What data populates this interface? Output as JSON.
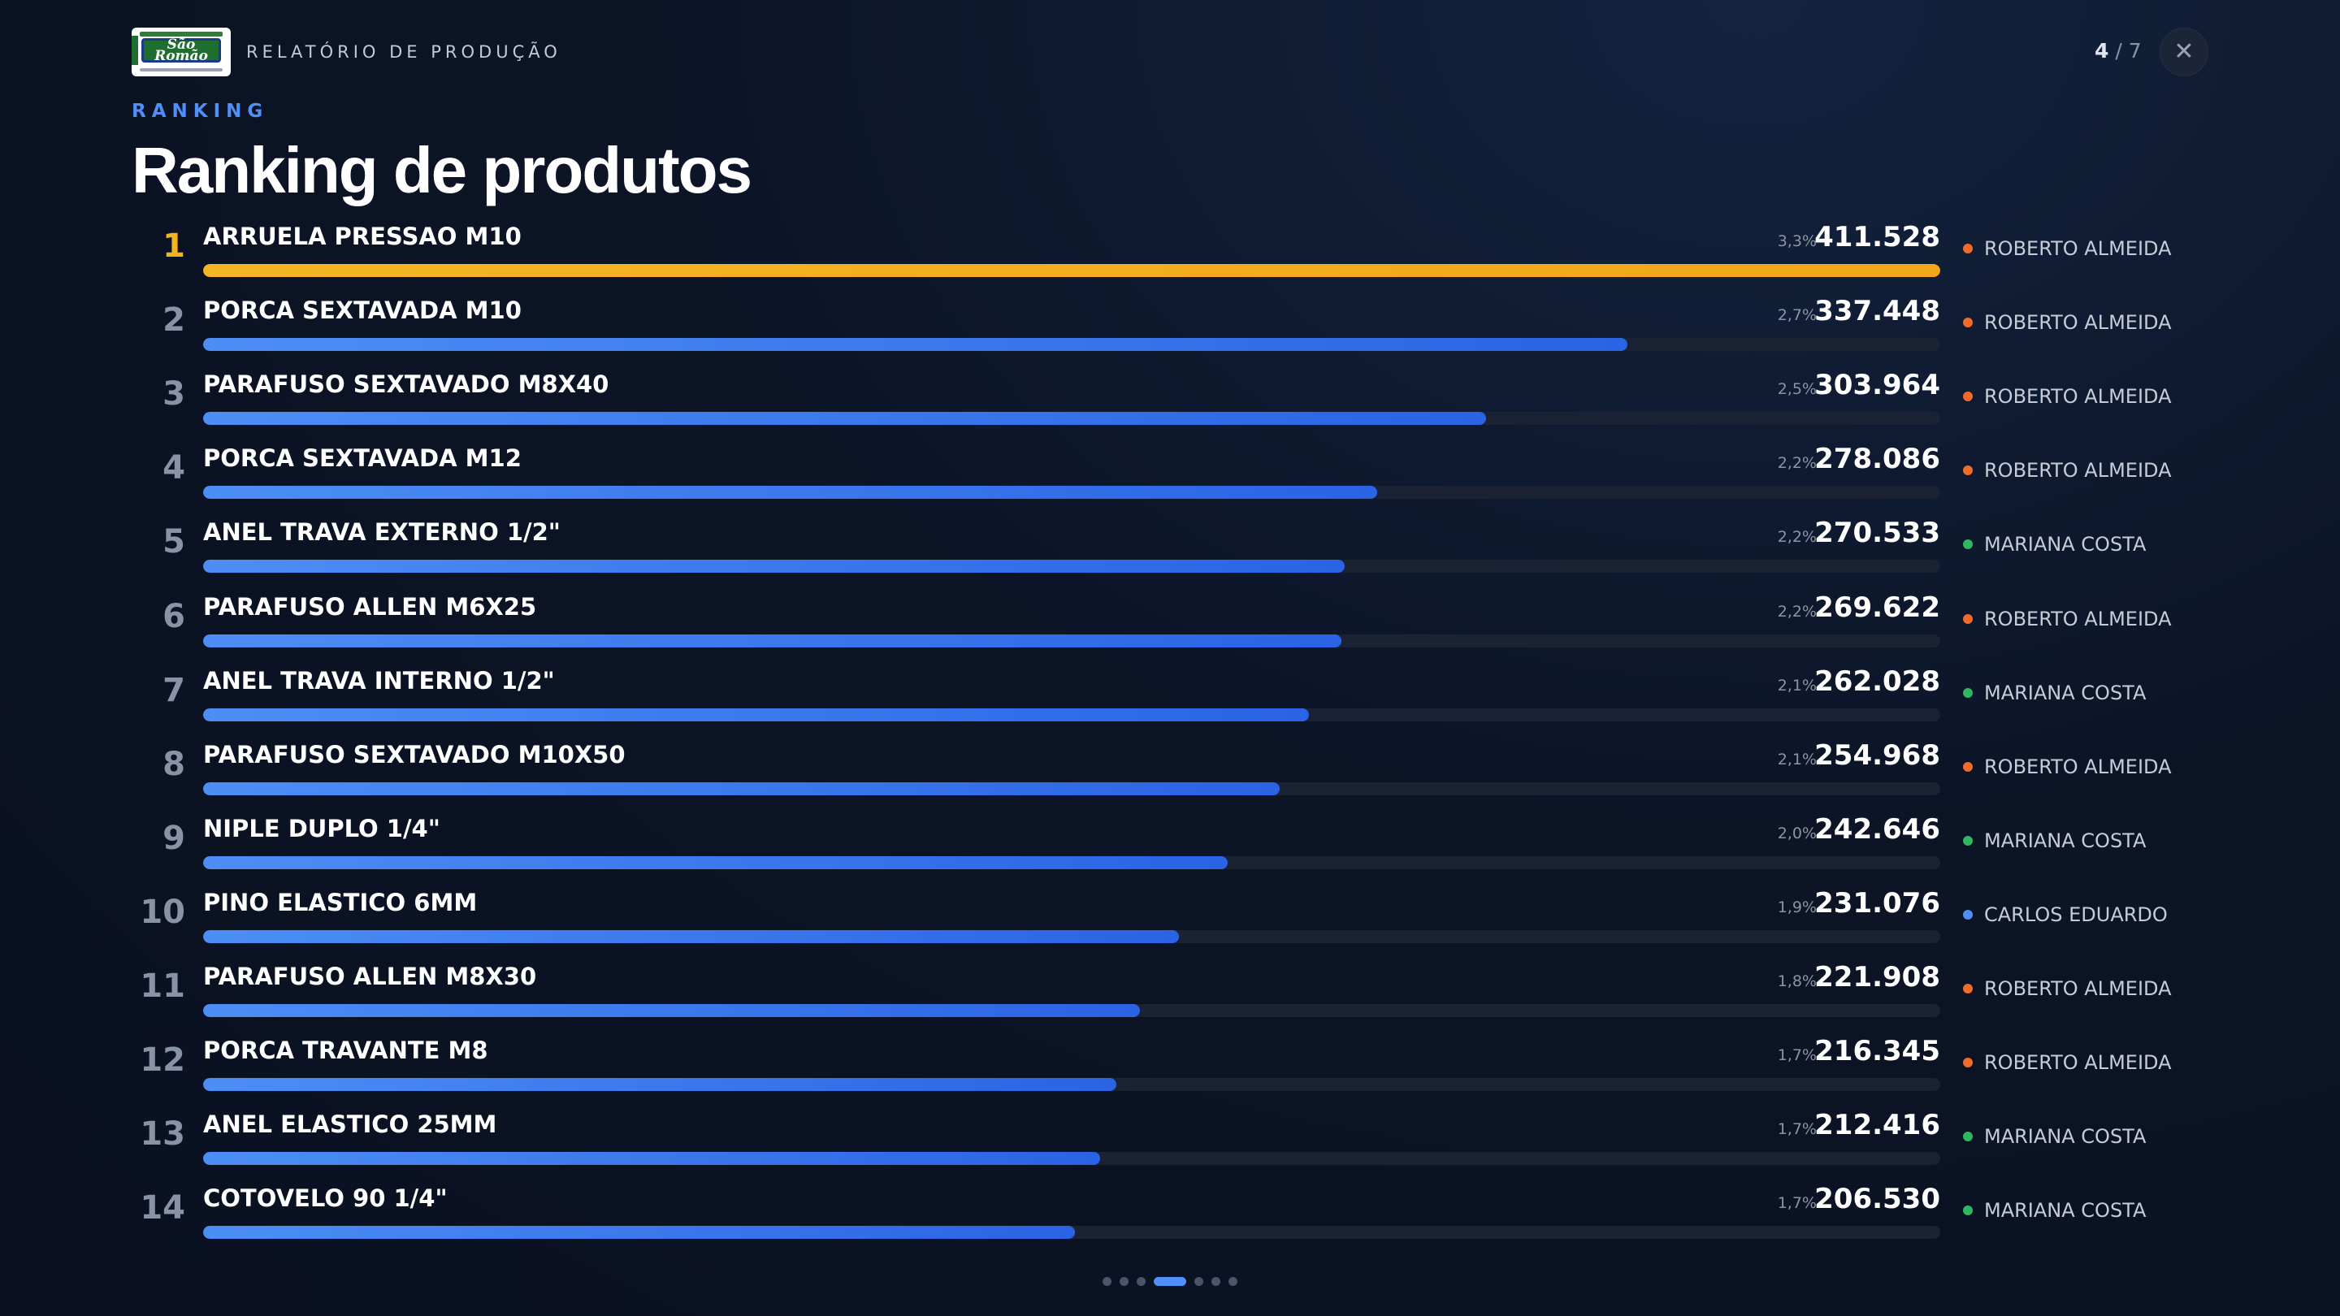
{
  "header": {
    "logo_text": "São Romão",
    "report_label": "RELATÓRIO DE PRODUÇÃO",
    "page_current": "4",
    "page_separator": " / ",
    "page_total": "7",
    "close_icon": "close-icon"
  },
  "section_label": "RANKING",
  "title": "Ranking de produtos",
  "colors": {
    "accent_blue": "#4f8ff7",
    "gold": "#f5b41c",
    "operator_orange": "#f26b2a",
    "operator_green": "#2fb860",
    "operator_blue": "#4f8ff7"
  },
  "rows": [
    {
      "rank": "1",
      "name": "ARRUELA PRESSAO M10",
      "pct": "3,3%",
      "value": "411.528",
      "amount": 411528,
      "operator": "ROBERTO ALMEIDA",
      "op_color": "#f26b2a"
    },
    {
      "rank": "2",
      "name": "PORCA SEXTAVADA M10",
      "pct": "2,7%",
      "value": "337.448",
      "amount": 337448,
      "operator": "ROBERTO ALMEIDA",
      "op_color": "#f26b2a"
    },
    {
      "rank": "3",
      "name": "PARAFUSO SEXTAVADO M8X40",
      "pct": "2,5%",
      "value": "303.964",
      "amount": 303964,
      "operator": "ROBERTO ALMEIDA",
      "op_color": "#f26b2a"
    },
    {
      "rank": "4",
      "name": "PORCA SEXTAVADA M12",
      "pct": "2,2%",
      "value": "278.086",
      "amount": 278086,
      "operator": "ROBERTO ALMEIDA",
      "op_color": "#f26b2a"
    },
    {
      "rank": "5",
      "name": "ANEL TRAVA EXTERNO 1/2\"",
      "pct": "2,2%",
      "value": "270.533",
      "amount": 270533,
      "operator": "MARIANA COSTA",
      "op_color": "#2fb860"
    },
    {
      "rank": "6",
      "name": "PARAFUSO ALLEN M6X25",
      "pct": "2,2%",
      "value": "269.622",
      "amount": 269622,
      "operator": "ROBERTO ALMEIDA",
      "op_color": "#f26b2a"
    },
    {
      "rank": "7",
      "name": "ANEL TRAVA INTERNO 1/2\"",
      "pct": "2,1%",
      "value": "262.028",
      "amount": 262028,
      "operator": "MARIANA COSTA",
      "op_color": "#2fb860"
    },
    {
      "rank": "8",
      "name": "PARAFUSO SEXTAVADO M10X50",
      "pct": "2,1%",
      "value": "254.968",
      "amount": 254968,
      "operator": "ROBERTO ALMEIDA",
      "op_color": "#f26b2a"
    },
    {
      "rank": "9",
      "name": "NIPLE DUPLO 1/4\"",
      "pct": "2,0%",
      "value": "242.646",
      "amount": 242646,
      "operator": "MARIANA COSTA",
      "op_color": "#2fb860"
    },
    {
      "rank": "10",
      "name": "PINO ELASTICO 6MM",
      "pct": "1,9%",
      "value": "231.076",
      "amount": 231076,
      "operator": "CARLOS EDUARDO",
      "op_color": "#4f8ff7"
    },
    {
      "rank": "11",
      "name": "PARAFUSO ALLEN M8X30",
      "pct": "1,8%",
      "value": "221.908",
      "amount": 221908,
      "operator": "ROBERTO ALMEIDA",
      "op_color": "#f26b2a"
    },
    {
      "rank": "12",
      "name": "PORCA TRAVANTE M8",
      "pct": "1,7%",
      "value": "216.345",
      "amount": 216345,
      "operator": "ROBERTO ALMEIDA",
      "op_color": "#f26b2a"
    },
    {
      "rank": "13",
      "name": "ANEL ELASTICO 25MM",
      "pct": "1,7%",
      "value": "212.416",
      "amount": 212416,
      "operator": "MARIANA COSTA",
      "op_color": "#2fb860"
    },
    {
      "rank": "14",
      "name": "COTOVELO 90 1/4\"",
      "pct": "1,7%",
      "value": "206.530",
      "amount": 206530,
      "operator": "MARIANA COSTA",
      "op_color": "#2fb860"
    }
  ],
  "pagination": {
    "total": 7,
    "active": 4
  }
}
